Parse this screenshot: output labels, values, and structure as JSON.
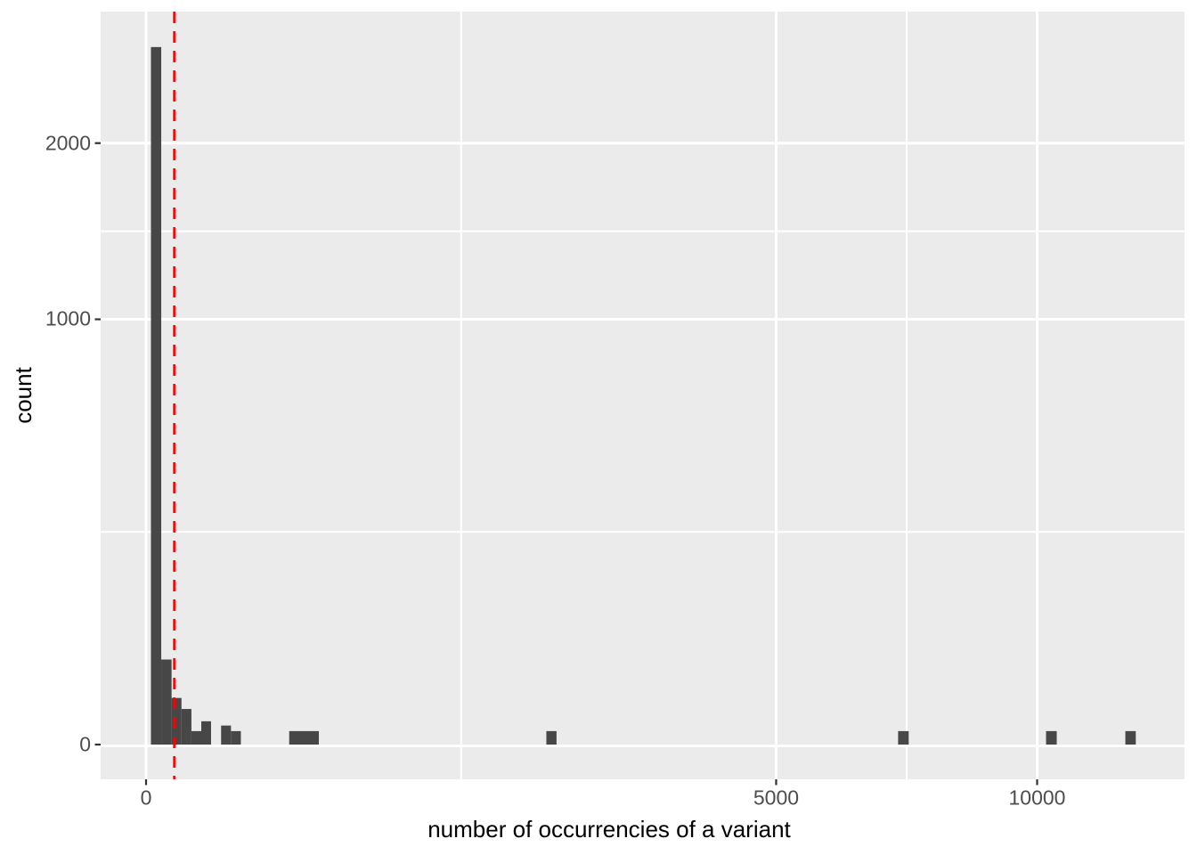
{
  "figure": {
    "background": "#ffffff"
  },
  "chart_data": {
    "type": "bar",
    "subtype": "histogram",
    "title": "",
    "xlabel": "number of occurrencies of a variant",
    "ylabel": "count",
    "x_scale": "sqrt",
    "y_scale": "sqrt",
    "x_ticks": [
      0,
      5000,
      10000
    ],
    "x_tick_labels": [
      "0",
      "5000",
      "10000"
    ],
    "y_ticks": [
      0,
      1000,
      2000
    ],
    "y_tick_labels": [
      "0",
      "1000",
      "2000"
    ],
    "x_axis_max_data": 12400,
    "grid": "major-and-minor",
    "legend_position": "none",
    "bars": [
      {
        "x_start": 0.3,
        "x_end": 2.9,
        "count": 2690
      },
      {
        "x_start": 2.9,
        "x_end": 8.2,
        "count": 40
      },
      {
        "x_start": 8.2,
        "x_end": 15.8,
        "count": 12
      },
      {
        "x_start": 15.8,
        "x_end": 25.9,
        "count": 7
      },
      {
        "x_start": 25.9,
        "x_end": 38.4,
        "count": 1
      },
      {
        "x_start": 38.4,
        "x_end": 53.2,
        "count": 3
      },
      {
        "x_start": 70.9,
        "x_end": 90.8,
        "count": 2
      },
      {
        "x_start": 90.8,
        "x_end": 113.2,
        "count": 1
      },
      {
        "x_start": 258,
        "x_end": 376,
        "count": 1
      },
      {
        "x_start": 2018,
        "x_end": 2122,
        "count": 1
      },
      {
        "x_start": 7123,
        "x_end": 7325,
        "count": 1
      },
      {
        "x_start": 10201,
        "x_end": 10445,
        "count": 1
      },
      {
        "x_start": 12078,
        "x_end": 12337,
        "count": 1
      }
    ],
    "reference_line": {
      "orientation": "vertical",
      "x": 10,
      "style": "dashed",
      "color": "#ff0000"
    },
    "colors": {
      "bar_fill": "#474747",
      "panel_background": "#ebebeb",
      "gridline": "#ffffff",
      "tick_mark": "#333333",
      "axis_text": "#4d4d4d",
      "axis_title_text": "#000000"
    }
  }
}
